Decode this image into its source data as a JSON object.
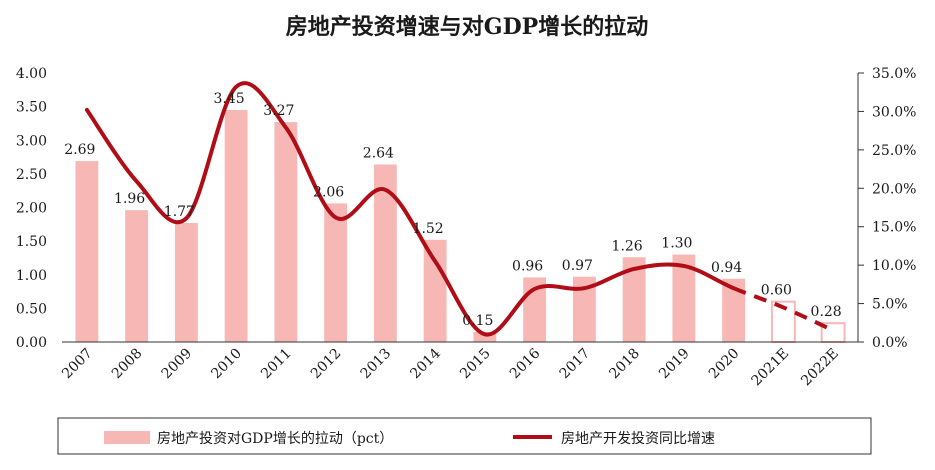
{
  "chart_data": {
    "type": "bar",
    "title": "房地产投资增速与对GDP增长的拉动",
    "categories": [
      "2007",
      "2008",
      "2009",
      "2010",
      "2011",
      "2012",
      "2013",
      "2014",
      "2015",
      "2016",
      "2017",
      "2018",
      "2019",
      "2020",
      "2021E",
      "2022E"
    ],
    "series": [
      {
        "name": "房地产投资对GDP增长的拉动（pct）",
        "type": "bar",
        "axis": "left",
        "values": [
          2.69,
          1.96,
          1.77,
          3.45,
          3.27,
          2.06,
          2.64,
          1.52,
          0.15,
          0.96,
          0.97,
          1.26,
          1.3,
          0.94,
          0.6,
          0.28
        ],
        "labels": [
          "2.69",
          "1.96",
          "1.77",
          "3.45",
          "3.27",
          "2.06",
          "2.64",
          "1.52",
          "0.15",
          "0.96",
          "0.97",
          "1.26",
          "1.30",
          "0.94",
          "0.60",
          "0.28"
        ],
        "forecast_from_index": 14,
        "color": "#f7b7b4"
      },
      {
        "name": "房地产开发投资同比增速",
        "type": "line",
        "axis": "right",
        "values": [
          30.2,
          20.9,
          16.1,
          33.2,
          27.9,
          16.2,
          19.8,
          10.5,
          1.0,
          6.9,
          7.0,
          9.5,
          9.9,
          7.0,
          4.5,
          1.5
        ],
        "unit": "%",
        "forecast_from_index": 13,
        "color": "#b00d17"
      }
    ],
    "y_left": {
      "ylim": [
        0,
        4
      ],
      "ticks": [
        "0.00",
        "0.50",
        "1.00",
        "1.50",
        "2.00",
        "2.50",
        "3.00",
        "3.50",
        "4.00"
      ]
    },
    "y_right": {
      "ylim": [
        0,
        35
      ],
      "ticks": [
        "0.0%",
        "5.0%",
        "10.0%",
        "15.0%",
        "20.0%",
        "25.0%",
        "30.0%",
        "35.0%"
      ]
    },
    "legend_position": "bottom",
    "grid": false
  }
}
